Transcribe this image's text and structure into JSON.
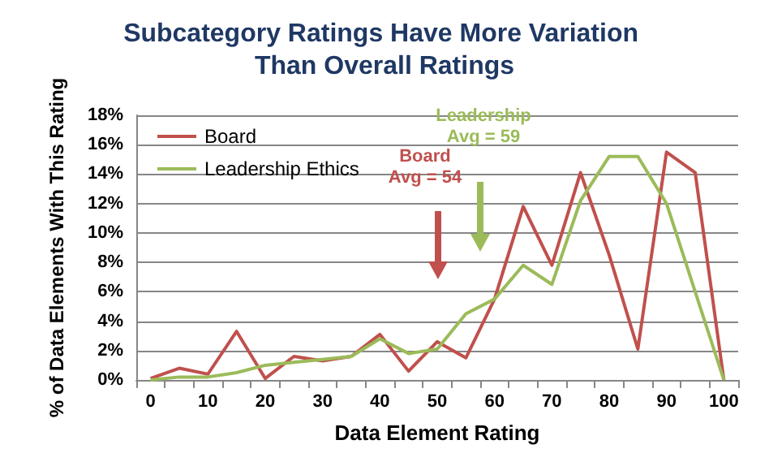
{
  "chart_data": {
    "type": "line",
    "title": "Subcategory Ratings Have More Variation Than Overall Ratings",
    "xlabel": "Data Element Rating",
    "ylabel": "% of Data Elements With This Rating",
    "categories": [
      "0",
      null,
      "10",
      null,
      "20",
      null,
      "30",
      null,
      "40",
      null,
      "50",
      null,
      "60",
      null,
      "70",
      null,
      "80",
      null,
      "90",
      null,
      "100"
    ],
    "series": [
      {
        "name": "Board",
        "color": "#c0504d",
        "values": [
          0.1,
          0.8,
          0.4,
          3.3,
          0.1,
          1.6,
          1.3,
          1.6,
          3.1,
          0.6,
          2.6,
          1.5,
          5.5,
          11.8,
          7.8,
          14.1,
          8.5,
          2.1,
          15.5,
          14.1,
          0
        ]
      },
      {
        "name": "Leadership Ethics",
        "color": "#9bbb59",
        "values": [
          0,
          0.2,
          0.2,
          0.5,
          1.0,
          1.2,
          1.4,
          1.6,
          2.8,
          1.8,
          2.1,
          4.5,
          5.5,
          7.8,
          6.5,
          12.2,
          15.2,
          15.2,
          12.0,
          6.0,
          0
        ]
      }
    ],
    "ylim": [
      0,
      18
    ],
    "yticks": [
      {
        "value": 0,
        "label": "0%"
      },
      {
        "value": 2,
        "label": "2%"
      },
      {
        "value": 4,
        "label": "4%"
      },
      {
        "value": 6,
        "label": "6%"
      },
      {
        "value": 8,
        "label": "8%"
      },
      {
        "value": 10,
        "label": "10%"
      },
      {
        "value": 12,
        "label": "12%"
      },
      {
        "value": 14,
        "label": "14%"
      },
      {
        "value": 16,
        "label": "16%"
      },
      {
        "value": 18,
        "label": "18%"
      }
    ],
    "annotations": [
      "Board\nAvg = 54",
      "Leadership\nAvg = 59"
    ],
    "grid": "y",
    "legend": "top left",
    "marker": "none",
    "line_style": "solid"
  }
}
